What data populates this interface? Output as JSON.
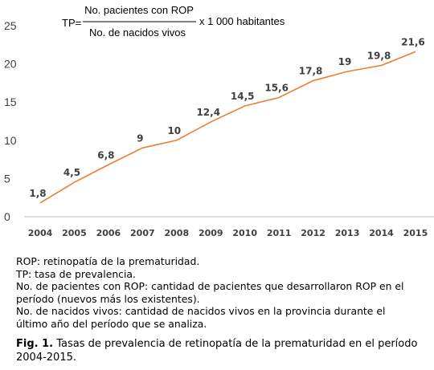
{
  "chart_data": {
    "type": "line",
    "categories": [
      "2004",
      "2005",
      "2006",
      "2007",
      "2008",
      "2009",
      "2010",
      "2011",
      "2012",
      "2013",
      "2014",
      "2015"
    ],
    "values": [
      1.8,
      4.5,
      6.8,
      9,
      10,
      12.4,
      14.5,
      15.6,
      17.8,
      19,
      19.8,
      21.6
    ],
    "data_labels": [
      "1,8",
      "4,5",
      "6,8",
      "9",
      "10",
      "12,4",
      "14,5",
      "15,6",
      "17,8",
      "19",
      "19,8",
      "21,6"
    ],
    "yticks": [
      "0",
      "5",
      "10",
      "15",
      "20",
      "25"
    ],
    "ylim": [
      0,
      25
    ],
    "grid": false,
    "legend": "none",
    "line_color": "#ED7D31",
    "formula": {
      "lhs": "TP=",
      "numerator": "No. pacientes con ROP",
      "denominator": "No. de nacidos vivos",
      "factor": "x 1 000 habitantes"
    }
  },
  "notes": [
    "ROP: retinopatía de la prematuridad.",
    "TP: tasa de prevalencia.",
    "No. de pacientes con ROP: cantidad de pacientes que desarrollaron ROP en el período (nuevos más los existentes).",
    "No. de nacidos vivos: cantidad de nacidos vivos en la provincia durante el último año del período que se analiza."
  ],
  "caption": {
    "label": "Fig. 1.",
    "text": " Tasas de prevalencia de retinopatía de la prematuridad en el período 2004-2015."
  }
}
